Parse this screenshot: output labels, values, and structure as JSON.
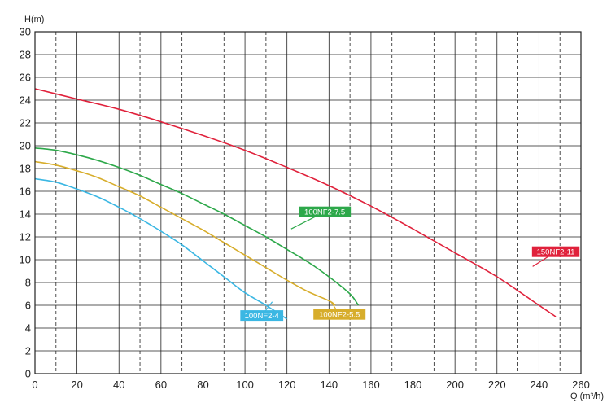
{
  "chart_data": {
    "type": "line",
    "xlabel": "Q (m³/h)",
    "ylabel": "H(m)",
    "xlim": [
      0,
      260
    ],
    "ylim": [
      0,
      30
    ],
    "x_major_ticks": [
      "0",
      "20",
      "40",
      "60",
      "80",
      "100",
      "120",
      "140",
      "160",
      "180",
      "200",
      "220",
      "240",
      "260"
    ],
    "y_major_ticks": [
      "0",
      "2",
      "4",
      "6",
      "8",
      "10",
      "12",
      "14",
      "16",
      "18",
      "20",
      "22",
      "24",
      "26",
      "28",
      "30"
    ],
    "x_major_step": 20,
    "x_minor_step": 10,
    "y_step": 2,
    "grid": true,
    "series": [
      {
        "name": "100NF2-4",
        "color": "#3bb7e3",
        "x": [
          0,
          10,
          20,
          30,
          40,
          50,
          60,
          70,
          80,
          90,
          100,
          110,
          120
        ],
        "y": [
          17.1,
          16.8,
          16.2,
          15.5,
          14.6,
          13.6,
          12.5,
          11.3,
          9.9,
          8.5,
          7.1,
          6.0,
          4.8
        ]
      },
      {
        "name": "100NF2-5.5",
        "color": "#d7ad2b",
        "x": [
          0,
          10,
          20,
          30,
          40,
          50,
          60,
          70,
          80,
          90,
          100,
          110,
          120,
          130,
          140,
          143
        ],
        "y": [
          18.6,
          18.3,
          17.8,
          17.2,
          16.4,
          15.6,
          14.6,
          13.6,
          12.6,
          11.5,
          10.4,
          9.3,
          8.2,
          7.2,
          6.4,
          6.0
        ]
      },
      {
        "name": "100NF2-7.5",
        "color": "#2da84a",
        "x": [
          0,
          10,
          20,
          30,
          40,
          50,
          60,
          70,
          80,
          90,
          100,
          110,
          120,
          130,
          140,
          150,
          154
        ],
        "y": [
          19.8,
          19.6,
          19.2,
          18.7,
          18.1,
          17.4,
          16.6,
          15.8,
          14.9,
          14.0,
          13.0,
          12.0,
          10.9,
          9.8,
          8.5,
          7.0,
          6.0
        ]
      },
      {
        "name": "150NF2-11",
        "color": "#e0213b",
        "x": [
          0,
          20,
          40,
          60,
          80,
          100,
          120,
          140,
          160,
          180,
          200,
          220,
          240,
          248
        ],
        "y": [
          25.0,
          24.1,
          23.2,
          22.1,
          20.9,
          19.6,
          18.1,
          16.5,
          14.7,
          12.7,
          10.6,
          8.5,
          6.0,
          5.0
        ]
      }
    ],
    "annotations": [
      {
        "text": "100NF2-4",
        "series": "100NF2-4",
        "label_at": [
          108,
          5.1
        ],
        "point_to": [
          113,
          6.3
        ]
      },
      {
        "text": "100NF2-5.5",
        "series": "100NF2-5.5",
        "label_at": [
          145,
          5.2
        ],
        "point_to": [
          141,
          6.3
        ]
      },
      {
        "text": "100NF2-7.5",
        "series": "100NF2-7.5",
        "label_at": [
          138,
          14.2
        ],
        "point_to": [
          122,
          12.7
        ]
      },
      {
        "text": "150NF2-11",
        "series": "150NF2-11",
        "label_at": [
          248,
          10.7
        ],
        "point_to": [
          237,
          9.4
        ]
      }
    ]
  }
}
